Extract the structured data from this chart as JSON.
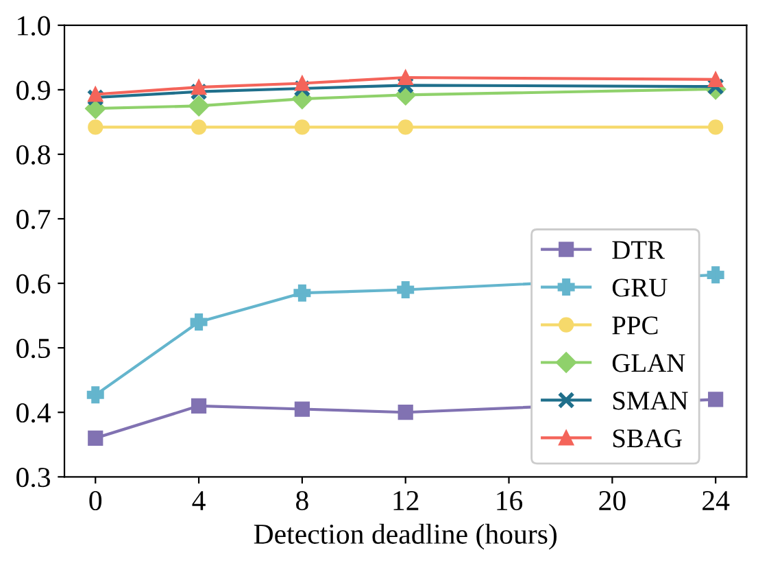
{
  "chart_data": {
    "type": "line",
    "xlabel": "Detection deadline (hours)",
    "x": [
      0,
      4,
      8,
      12,
      24
    ],
    "xlim": [
      -1.2,
      25.2
    ],
    "xticks": [
      0,
      4,
      8,
      12,
      16,
      20,
      24
    ],
    "ylim": [
      0.3,
      1.0
    ],
    "yticks": [
      0.3,
      0.4,
      0.5,
      0.6,
      0.7,
      0.8,
      0.9,
      {
        "value": 1.0,
        "label": "1.0"
      }
    ],
    "legend": "lower right",
    "grid": false,
    "line_style": "solid",
    "series": [
      {
        "name": "DTR",
        "color": "#8172b2",
        "marker": "square",
        "values": [
          0.36,
          0.41,
          0.405,
          0.4,
          0.42
        ]
      },
      {
        "name": "GRU",
        "color": "#64b5cd",
        "marker": "plus",
        "values": [
          0.427,
          0.54,
          0.585,
          0.59,
          0.613
        ]
      },
      {
        "name": "PPC",
        "color": "#f6d96b",
        "marker": "circle",
        "values": [
          0.842,
          0.842,
          0.842,
          0.842,
          0.842
        ]
      },
      {
        "name": "GLAN",
        "color": "#8fd16b",
        "marker": "diamond",
        "values": [
          0.871,
          0.875,
          0.886,
          0.892,
          0.901
        ]
      },
      {
        "name": "SMAN",
        "color": "#1f6f8b",
        "marker": "cross",
        "values": [
          0.888,
          0.897,
          0.902,
          0.907,
          0.905
        ]
      },
      {
        "name": "SBAG",
        "color": "#f4645a",
        "marker": "triangle",
        "values": [
          0.893,
          0.904,
          0.91,
          0.919,
          0.916
        ]
      }
    ]
  }
}
